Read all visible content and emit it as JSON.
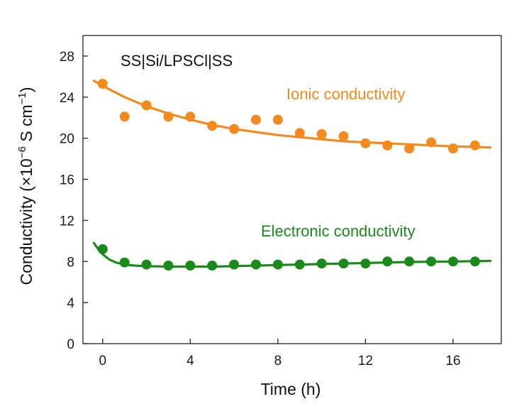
{
  "chart_data": {
    "type": "scatter",
    "xlabel": "Time (h)",
    "ylabel": {
      "base": "Conductivity (×10",
      "exp1": "−6",
      "mid": " S cm",
      "exp2": "−1",
      "end": ")"
    },
    "xlim": [
      -0.9,
      18.2
    ],
    "ylim": [
      0,
      30
    ],
    "xticks": [
      0,
      4,
      8,
      12,
      16
    ],
    "yticks": [
      0,
      4,
      8,
      12,
      16,
      20,
      24,
      28
    ],
    "grid": false,
    "annotations": {
      "sample": "SS|Si/LPSCl|SS",
      "ionic": "Ionic conductivity",
      "electronic": "Electronic conductivity"
    },
    "series": [
      {
        "name": "Ionic conductivity",
        "color": "#F28A1E",
        "x": [
          0,
          1,
          2,
          3,
          4,
          5,
          6,
          7,
          8,
          9,
          10,
          11,
          12,
          13,
          14,
          15,
          16,
          17
        ],
        "y": [
          25.3,
          22.1,
          23.2,
          22.1,
          22.1,
          21.2,
          20.9,
          21.8,
          21.8,
          20.5,
          20.4,
          20.2,
          19.5,
          19.3,
          19.0,
          19.6,
          19.0,
          19.3
        ],
        "fit": {
          "x": [
            -0.4,
            0,
            1,
            2,
            3,
            4,
            5,
            6,
            7,
            8,
            9,
            10,
            11,
            12,
            13,
            14,
            15,
            16,
            17,
            17.7
          ],
          "y": [
            25.6,
            25.1,
            24.0,
            23.1,
            22.4,
            21.8,
            21.3,
            20.9,
            20.6,
            20.3,
            20.1,
            19.9,
            19.7,
            19.6,
            19.5,
            19.4,
            19.3,
            19.2,
            19.15,
            19.1
          ]
        }
      },
      {
        "name": "Electronic conductivity",
        "color": "#1A8A1A",
        "x": [
          0,
          1,
          2,
          3,
          4,
          5,
          6,
          7,
          8,
          9,
          10,
          11,
          12,
          13,
          14,
          15,
          16,
          17
        ],
        "y": [
          9.2,
          7.9,
          7.7,
          7.6,
          7.6,
          7.6,
          7.7,
          7.7,
          7.7,
          7.7,
          7.8,
          7.8,
          7.8,
          8.0,
          8.0,
          8.0,
          8.0,
          8.0
        ],
        "fit": {
          "x": [
            -0.4,
            -0.2,
            0,
            0.3,
            0.6,
            1,
            1.5,
            2,
            3,
            4,
            5,
            6,
            8,
            10,
            12,
            14,
            16,
            17.7
          ],
          "y": [
            9.8,
            9.2,
            8.7,
            8.2,
            7.9,
            7.7,
            7.6,
            7.55,
            7.5,
            7.5,
            7.5,
            7.55,
            7.65,
            7.75,
            7.85,
            7.95,
            8.0,
            8.05
          ]
        }
      }
    ]
  }
}
